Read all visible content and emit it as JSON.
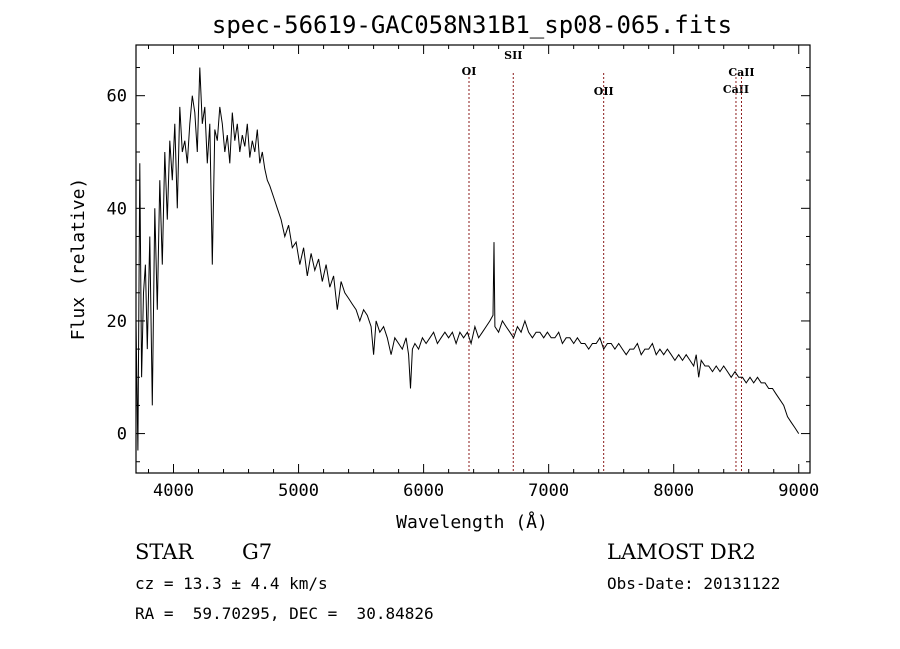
{
  "chart_data": {
    "type": "line",
    "title": "spec-56619-GAC058N31B1_sp08-065.fits",
    "xlabel": "Wavelength (Å)",
    "ylabel": "Flux (relative)",
    "xlim": [
      3700,
      9090
    ],
    "ylim": [
      -7,
      69
    ],
    "xticks": [
      4000,
      5000,
      6000,
      7000,
      8000,
      9000
    ],
    "yticks": [
      0,
      20,
      40,
      60
    ],
    "grid": false,
    "line_color": "#000000",
    "marker_color": "#8b1a1a",
    "series": [
      {
        "x": [
          3700,
          3715,
          3730,
          3745,
          3760,
          3775,
          3790,
          3810,
          3830,
          3850,
          3870,
          3890,
          3910,
          3930,
          3950,
          3970,
          3990,
          4010,
          4030,
          4050,
          4070,
          4090,
          4110,
          4130,
          4150,
          4170,
          4190,
          4210,
          4230,
          4250,
          4270,
          4290,
          4310,
          4330,
          4350,
          4370,
          4390,
          4410,
          4430,
          4450,
          4470,
          4490,
          4510,
          4530,
          4550,
          4570,
          4590,
          4610,
          4630,
          4650,
          4670,
          4690,
          4710,
          4730,
          4750,
          4770,
          4800,
          4830,
          4860,
          4890,
          4920,
          4950,
          4980,
          5010,
          5040,
          5070,
          5100,
          5130,
          5160,
          5190,
          5220,
          5250,
          5280,
          5310,
          5340,
          5370,
          5400,
          5430,
          5460,
          5490,
          5520,
          5550,
          5580,
          5600,
          5620,
          5650,
          5680,
          5710,
          5740,
          5770,
          5800,
          5830,
          5860,
          5880,
          5895,
          5910,
          5930,
          5960,
          5990,
          6020,
          6050,
          6080,
          6110,
          6140,
          6170,
          6200,
          6230,
          6260,
          6290,
          6320,
          6350,
          6380,
          6410,
          6440,
          6470,
          6500,
          6530,
          6555,
          6563,
          6570,
          6600,
          6630,
          6660,
          6690,
          6720,
          6750,
          6780,
          6810,
          6840,
          6870,
          6900,
          6930,
          6960,
          6990,
          7020,
          7050,
          7080,
          7110,
          7140,
          7170,
          7200,
          7230,
          7260,
          7290,
          7320,
          7350,
          7380,
          7410,
          7440,
          7470,
          7500,
          7530,
          7560,
          7590,
          7620,
          7650,
          7680,
          7710,
          7740,
          7770,
          7800,
          7830,
          7860,
          7890,
          7920,
          7950,
          7980,
          8010,
          8040,
          8070,
          8100,
          8130,
          8160,
          8180,
          8200,
          8220,
          8250,
          8280,
          8310,
          8340,
          8370,
          8400,
          8430,
          8460,
          8490,
          8520,
          8550,
          8580,
          8610,
          8640,
          8670,
          8700,
          8730,
          8760,
          8790,
          8820,
          8850,
          8880,
          8910,
          8940,
          8970,
          9000
        ],
        "y": [
          20,
          -3,
          48,
          10,
          25,
          30,
          15,
          35,
          5,
          40,
          22,
          45,
          30,
          50,
          38,
          52,
          45,
          55,
          40,
          58,
          50,
          52,
          48,
          55,
          60,
          57,
          50,
          65,
          55,
          58,
          48,
          55,
          30,
          54,
          52,
          58,
          55,
          50,
          53,
          48,
          57,
          52,
          55,
          50,
          53,
          51,
          55,
          49,
          52,
          50,
          54,
          48,
          50,
          47,
          45,
          44,
          42,
          40,
          38,
          35,
          37,
          33,
          34,
          30,
          33,
          28,
          32,
          29,
          31,
          27,
          30,
          26,
          28,
          22,
          27,
          25,
          24,
          23,
          22,
          20,
          22,
          21,
          19,
          14,
          20,
          18,
          19,
          17,
          14,
          17,
          16,
          15,
          17,
          14,
          8,
          15,
          16,
          15,
          17,
          16,
          17,
          18,
          16,
          17,
          18,
          17,
          18,
          16,
          18,
          17,
          18,
          16,
          19,
          17,
          18,
          19,
          20,
          21,
          34,
          19,
          18,
          20,
          19,
          18,
          17,
          19,
          18,
          20,
          18,
          17,
          18,
          18,
          17,
          18,
          17,
          17,
          18,
          16,
          17,
          17,
          16,
          17,
          16,
          16,
          15,
          16,
          16,
          17,
          15,
          16,
          16,
          15,
          16,
          15,
          14,
          15,
          15,
          16,
          14,
          15,
          15,
          16,
          14,
          15,
          14,
          15,
          14,
          13,
          14,
          13,
          14,
          13,
          12,
          14,
          10,
          13,
          12,
          12,
          11,
          12,
          11,
          12,
          11,
          10,
          11,
          10,
          10,
          9,
          10,
          9,
          10,
          9,
          9,
          8,
          8,
          7,
          6,
          5,
          3,
          2,
          1,
          0
        ]
      }
    ],
    "line_markers": [
      {
        "label": "OI",
        "x": 6363
      },
      {
        "label": "SII",
        "x": 6717
      },
      {
        "label": "OII",
        "x": 7440
      },
      {
        "label": "CaII",
        "x": 8498
      },
      {
        "label": "CaII",
        "x": 8542
      }
    ]
  },
  "info": {
    "object_class": "STAR",
    "subclass": "G7",
    "survey": "LAMOST DR2",
    "cz_line": "cz = 13.3 ± 4.4 km/s",
    "obs_date_line": "Obs-Date: 20131122",
    "coord_line": "RA =  59.70295, DEC =  30.84826"
  }
}
